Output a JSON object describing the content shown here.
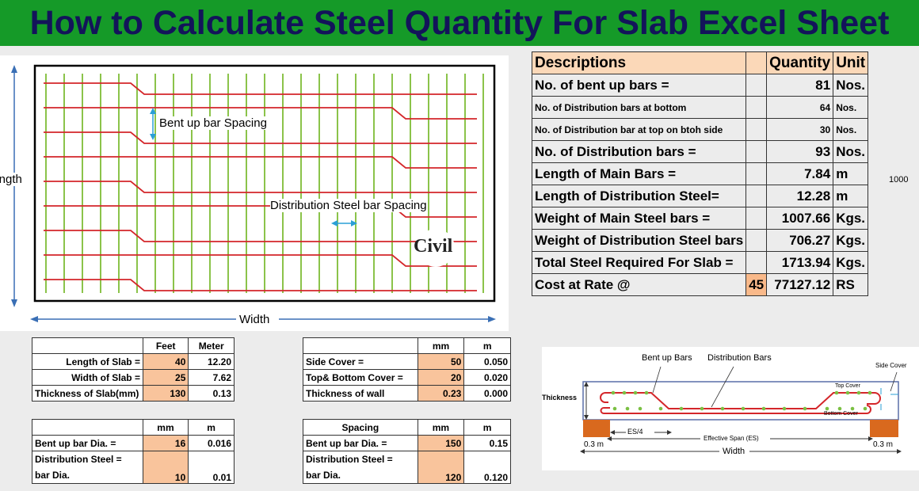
{
  "banner": {
    "title": "How to Calculate Steel Quantity For Slab Excel Sheet"
  },
  "slab_diagram": {
    "length_label": "Length",
    "width_label": "Width",
    "bent_label": "Bent up bar Spacing",
    "dist_label": "Distribution Steel bar Spacing",
    "logo_text": "Civil"
  },
  "summary": {
    "headers": [
      "Descriptions",
      "",
      "Quantity",
      "Unit"
    ],
    "rows": [
      {
        "desc": "No. of bent up bars =",
        "qty": "81",
        "unit": "Nos.",
        "small": false
      },
      {
        "desc": "No. of Distribution  bars at bottom",
        "qty": "64",
        "unit": "Nos.",
        "small": true
      },
      {
        "desc": "No. of Distribution bar at top on btoh side",
        "qty": "30",
        "unit": "Nos.",
        "small": true
      },
      {
        "desc": "No. of Distribution  bars =",
        "qty": "93",
        "unit": "Nos.",
        "small": false
      },
      {
        "desc": "Length of Main Bars =",
        "qty": "7.84",
        "unit": "m",
        "small": false
      },
      {
        "desc": "Length of Distribution Steel=",
        "qty": "12.28",
        "unit": "m",
        "small": false
      },
      {
        "desc": "Weight of Main Steel bars =",
        "qty": "1007.66",
        "unit": "Kgs.",
        "small": false
      },
      {
        "desc": "Weight of Distribution Steel bars",
        "qty": "706.27",
        "unit": "Kgs.",
        "small": false
      },
      {
        "desc": "Total Steel Required For Slab =",
        "qty": "1713.94",
        "unit": "Kgs.",
        "small": false
      }
    ],
    "cost": {
      "desc": "Cost at Rate @",
      "rate": "45",
      "qty": "77127.12",
      "unit": "RS"
    },
    "side_value": "1000"
  },
  "dims_table": {
    "headers": [
      "",
      "Feet",
      "Meter"
    ],
    "rows": [
      [
        "Length of Slab =",
        "40",
        "12.20"
      ],
      [
        "Width of Slab =",
        "25",
        "7.62"
      ],
      [
        "Thickness of Slab(mm)",
        "130",
        "0.13"
      ]
    ]
  },
  "cover_table": {
    "headers": [
      "",
      "mm",
      "m"
    ],
    "rows": [
      [
        "Side Cover   =",
        "50",
        "0.050"
      ],
      [
        "Top& Bottom Cover =",
        "20",
        "0.020"
      ],
      [
        "Thickness of wall",
        "0.23",
        "0.000"
      ]
    ]
  },
  "dia_table": {
    "headers": [
      "",
      "mm",
      "m"
    ],
    "r1": [
      "Bent up bar Dia.    =",
      "16",
      "0.016"
    ],
    "r2a": "Distribution Steel  =",
    "r2b": "bar Dia.",
    "r2v": [
      "10",
      "0.01"
    ]
  },
  "spacing_table": {
    "headers": [
      "Spacing",
      "mm",
      "m"
    ],
    "r1": [
      "Bent up bar Dia.    =",
      "150",
      "0.15"
    ],
    "r2a": "Distribution Steel  =",
    "r2b": "bar Dia.",
    "r2v": [
      "120",
      "0.120"
    ]
  },
  "section_diagram": {
    "bent_up": "Bent up Bars",
    "distribution": "Distribution Bars",
    "side_cover": "Side Cover",
    "top_cover": "Top Cover",
    "bottom_cover": "Bottom Cover",
    "thickness": "Thickness",
    "es4": "ES/4",
    "effective_span": "Effective Span (ES)",
    "width": "Width",
    "left_support": "0.3 m",
    "right_support": "0.3 m"
  }
}
